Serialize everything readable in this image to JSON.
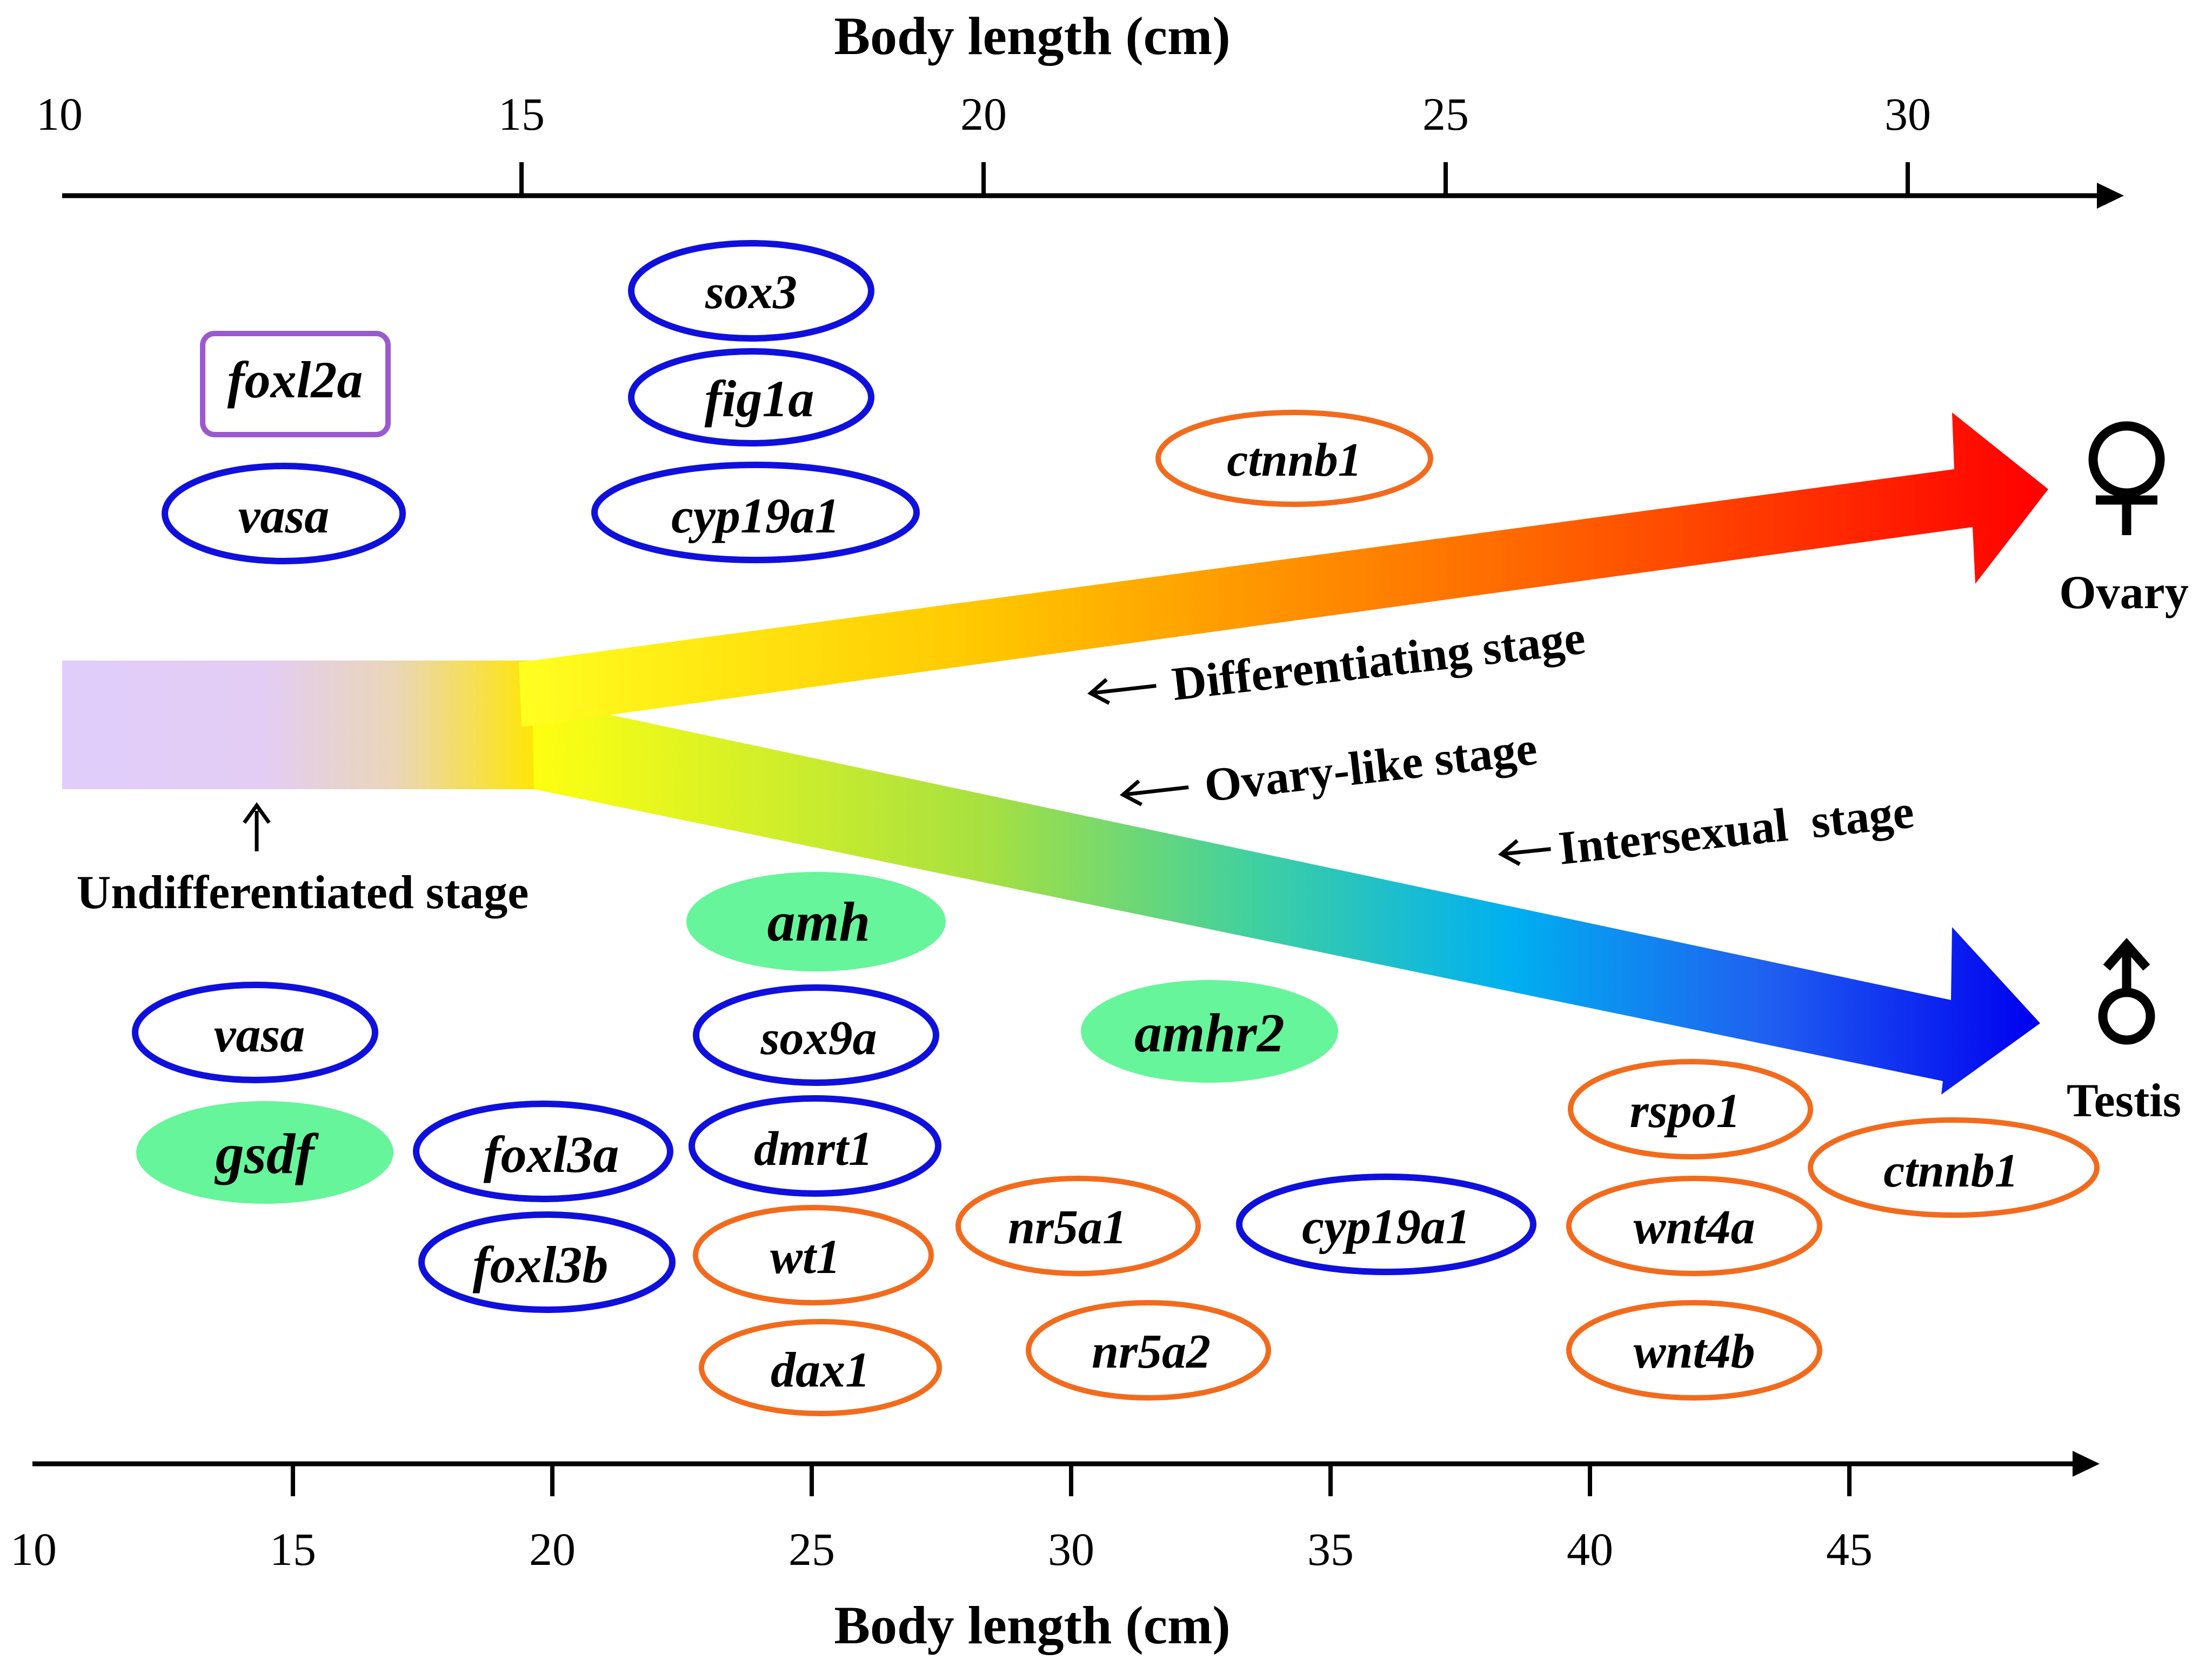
{
  "top_axis": {
    "title": "Body length (cm)",
    "ticks": [
      "10",
      "15",
      "20",
      "25",
      "30"
    ]
  },
  "bottom_axis": {
    "title": "Body length (cm)",
    "ticks": [
      "10",
      "15",
      "20",
      "25",
      "30",
      "35",
      "40",
      "45"
    ]
  },
  "stages": {
    "undifferentiated": "Undifferentiated stage",
    "differentiating": "Differentiating stage",
    "ovary_like": "Ovary-like stage",
    "intersexual": "Intersexual  stage"
  },
  "outcomes": {
    "female_symbol": "♀",
    "female_label": "Ovary",
    "male_symbol": "♂",
    "male_label": "Testis"
  },
  "genes_ovary": {
    "foxl2a": "foxl2a",
    "vasa": "vasa",
    "sox3": "sox3",
    "fig1a": "fig1a",
    "cyp19a1": "cyp19a1",
    "ctnnb1": "ctnnb1"
  },
  "genes_testis": {
    "vasa": "vasa",
    "gsdf": "gsdf",
    "foxl3a": "foxl3a",
    "foxl3b": "foxl3b",
    "amh": "amh",
    "sox9a": "sox9a",
    "dmrt1": "dmrt1",
    "wt1": "wt1",
    "dax1": "dax1",
    "amhr2": "amhr2",
    "nr5a1": "nr5a1",
    "nr5a2": "nr5a2",
    "cyp19a1": "cyp19a1",
    "rspo1": "rspo1",
    "wnt4a": "wnt4a",
    "wnt4b": "wnt4b",
    "ctnnb1": "ctnnb1"
  },
  "colors": {
    "blue_outline": "#1010dd",
    "orange_outline": "#f26b1d",
    "purple_outline": "#9b59d0",
    "green_fill": "#66f59a",
    "undiff_bar": "#e2cdfa"
  }
}
